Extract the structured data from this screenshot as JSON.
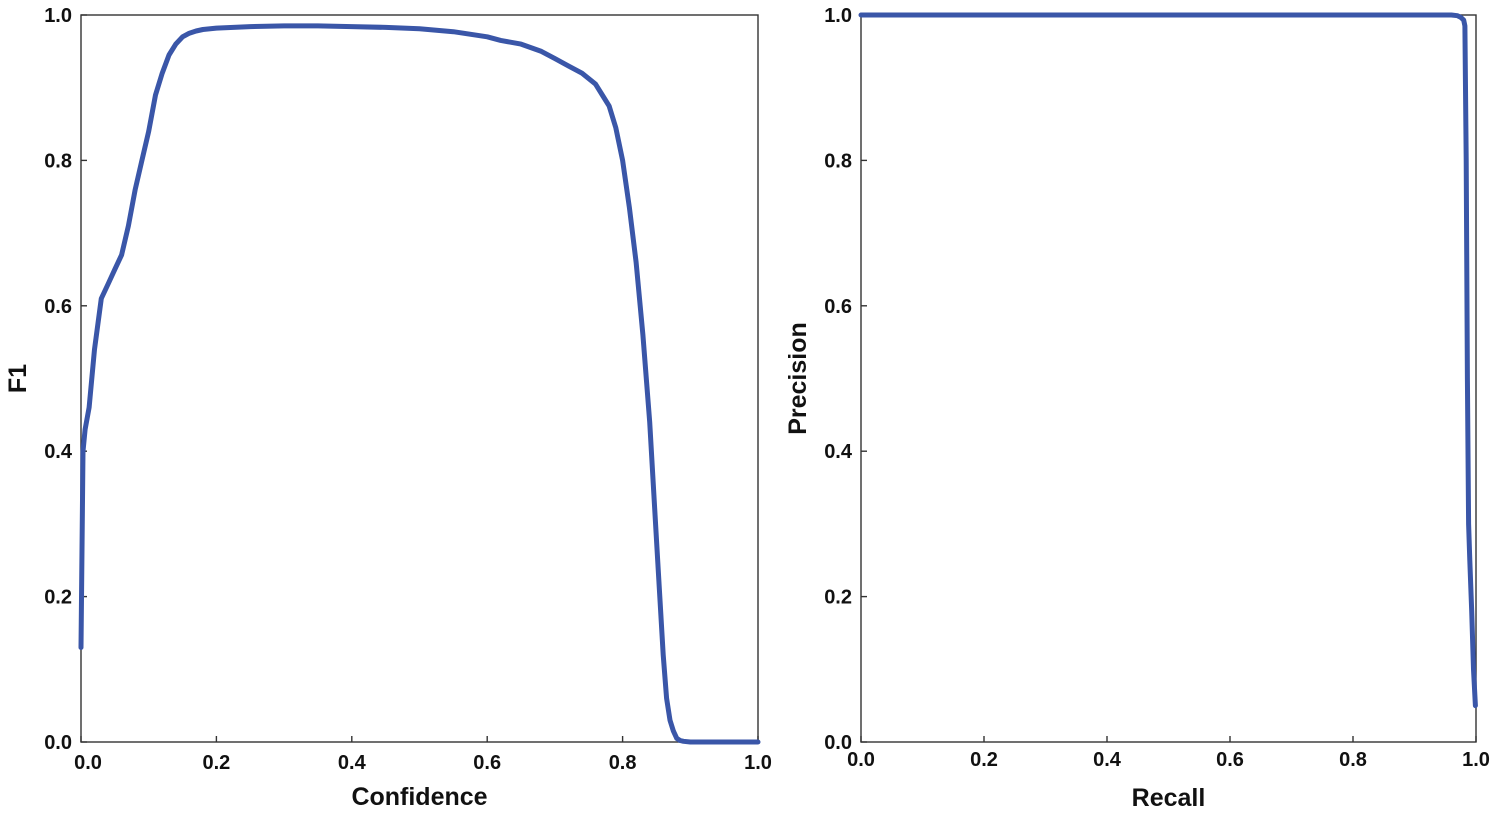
{
  "chart_data": [
    {
      "type": "line",
      "title": "",
      "xlabel": "Confidence",
      "ylabel": "F1",
      "xlim": [
        0,
        1
      ],
      "ylim": [
        0,
        1
      ],
      "grid": false,
      "xticks": [
        "0.0",
        "0.2",
        "0.4",
        "0.6",
        "0.8",
        "1.0"
      ],
      "yticks": [
        "0.0",
        "0.2",
        "0.4",
        "0.6",
        "0.8",
        "1.0"
      ],
      "line_color": "#3a56a8",
      "series": [
        {
          "x": [
            0.0,
            0.003,
            0.006,
            0.012,
            0.02,
            0.03,
            0.04,
            0.05,
            0.06,
            0.07,
            0.08,
            0.09,
            0.1,
            0.11,
            0.12,
            0.13,
            0.14,
            0.15,
            0.16,
            0.17,
            0.18,
            0.2,
            0.25,
            0.3,
            0.35,
            0.4,
            0.45,
            0.5,
            0.55,
            0.6,
            0.62,
            0.65,
            0.68,
            0.7,
            0.72,
            0.74,
            0.76,
            0.77,
            0.78,
            0.79,
            0.8,
            0.81,
            0.82,
            0.83,
            0.84,
            0.85,
            0.855,
            0.86,
            0.865,
            0.87,
            0.875,
            0.88,
            0.885,
            0.89,
            0.9,
            0.95,
            1.0
          ],
          "y": [
            0.13,
            0.4,
            0.43,
            0.46,
            0.54,
            0.61,
            0.63,
            0.65,
            0.67,
            0.71,
            0.76,
            0.8,
            0.84,
            0.89,
            0.92,
            0.945,
            0.96,
            0.97,
            0.975,
            0.978,
            0.98,
            0.982,
            0.984,
            0.985,
            0.985,
            0.984,
            0.983,
            0.981,
            0.977,
            0.97,
            0.965,
            0.96,
            0.95,
            0.94,
            0.93,
            0.92,
            0.905,
            0.89,
            0.875,
            0.845,
            0.8,
            0.735,
            0.66,
            0.56,
            0.44,
            0.28,
            0.2,
            0.12,
            0.06,
            0.03,
            0.015,
            0.005,
            0.002,
            0.001,
            0.0,
            0.0,
            0.0
          ]
        }
      ]
    },
    {
      "type": "line",
      "title": "",
      "xlabel": "Recall",
      "ylabel": "Precision",
      "xlim": [
        0,
        1
      ],
      "ylim": [
        0,
        1
      ],
      "grid": false,
      "xticks": [
        "0.0",
        "0.2",
        "0.4",
        "0.6",
        "0.8",
        "1.0"
      ],
      "yticks": [
        "0.0",
        "0.2",
        "0.4",
        "0.6",
        "0.8",
        "1.0"
      ],
      "line_color": "#3a56a8",
      "series": [
        {
          "x": [
            0.0,
            0.5,
            0.9,
            0.96,
            0.97,
            0.975,
            0.98,
            0.982,
            0.984,
            0.986,
            0.988,
            0.99,
            0.993,
            0.996,
            0.999
          ],
          "y": [
            1.0,
            1.0,
            1.0,
            1.0,
            0.999,
            0.997,
            0.993,
            0.985,
            0.8,
            0.5,
            0.3,
            0.25,
            0.18,
            0.1,
            0.05
          ]
        }
      ]
    }
  ]
}
